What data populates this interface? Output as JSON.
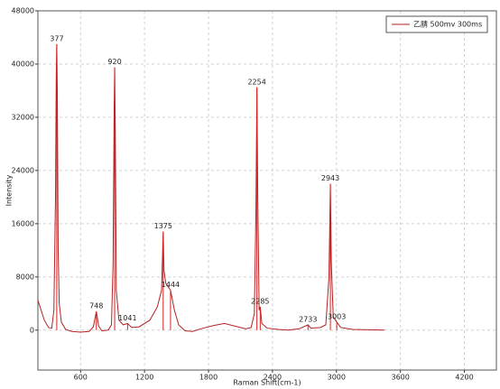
{
  "chart_data": {
    "type": "line",
    "xlabel": "Raman Shift(cm-1)",
    "ylabel": "Intensity",
    "x": [
      200,
      230,
      260,
      300,
      330,
      350,
      365,
      372,
      377,
      382,
      390,
      400,
      420,
      460,
      520,
      600,
      680,
      720,
      748,
      770,
      800,
      860,
      890,
      905,
      915,
      920,
      926,
      935,
      960,
      1000,
      1041,
      1080,
      1150,
      1250,
      1320,
      1360,
      1370,
      1375,
      1382,
      1400,
      1444,
      1480,
      1520,
      1580,
      1650,
      1750,
      1850,
      1950,
      2050,
      2150,
      2200,
      2230,
      2245,
      2254,
      2262,
      2275,
      2285,
      2300,
      2350,
      2450,
      2550,
      2650,
      2733,
      2760,
      2850,
      2900,
      2930,
      2943,
      2952,
      2970,
      3003,
      3040,
      3150,
      3300,
      3450
    ],
    "series": [
      {
        "name": "乙腈 500mv 300ms",
        "color": "#b22222",
        "values": [
          4500,
          3000,
          1500,
          400,
          300,
          3000,
          20000,
          38000,
          43000,
          36000,
          12000,
          4000,
          1200,
          100,
          -200,
          -300,
          -200,
          500,
          2800,
          600,
          -100,
          0,
          800,
          10000,
          33000,
          39500,
          30000,
          6000,
          1500,
          800,
          1000,
          400,
          500,
          1500,
          3500,
          6000,
          12000,
          14800,
          9000,
          7000,
          6000,
          3000,
          800,
          -100,
          -200,
          300,
          700,
          1000,
          600,
          200,
          400,
          2500,
          18000,
          36500,
          20000,
          3000,
          3500,
          1000,
          300,
          100,
          0,
          200,
          800,
          300,
          400,
          800,
          8000,
          22000,
          10000,
          2000,
          1200,
          400,
          100,
          50,
          0
        ]
      }
    ],
    "peaks": {
      "color": "#d42020",
      "x": [
        377,
        748,
        920,
        1041,
        1375,
        1444,
        2254,
        2285,
        2733,
        2943,
        3003
      ],
      "values": [
        43000,
        2800,
        39500,
        1000,
        14800,
        6000,
        36500,
        3500,
        800,
        22000,
        1200
      ]
    },
    "xlim": [
      200,
      4500
    ],
    "ylim": [
      -6000,
      48000
    ],
    "xticks": [
      600,
      1200,
      1800,
      2400,
      3000,
      3600,
      4200
    ],
    "yticks": [
      0,
      8000,
      16000,
      24000,
      32000,
      40000,
      48000
    ],
    "grid": true,
    "legend": "upper-right"
  }
}
